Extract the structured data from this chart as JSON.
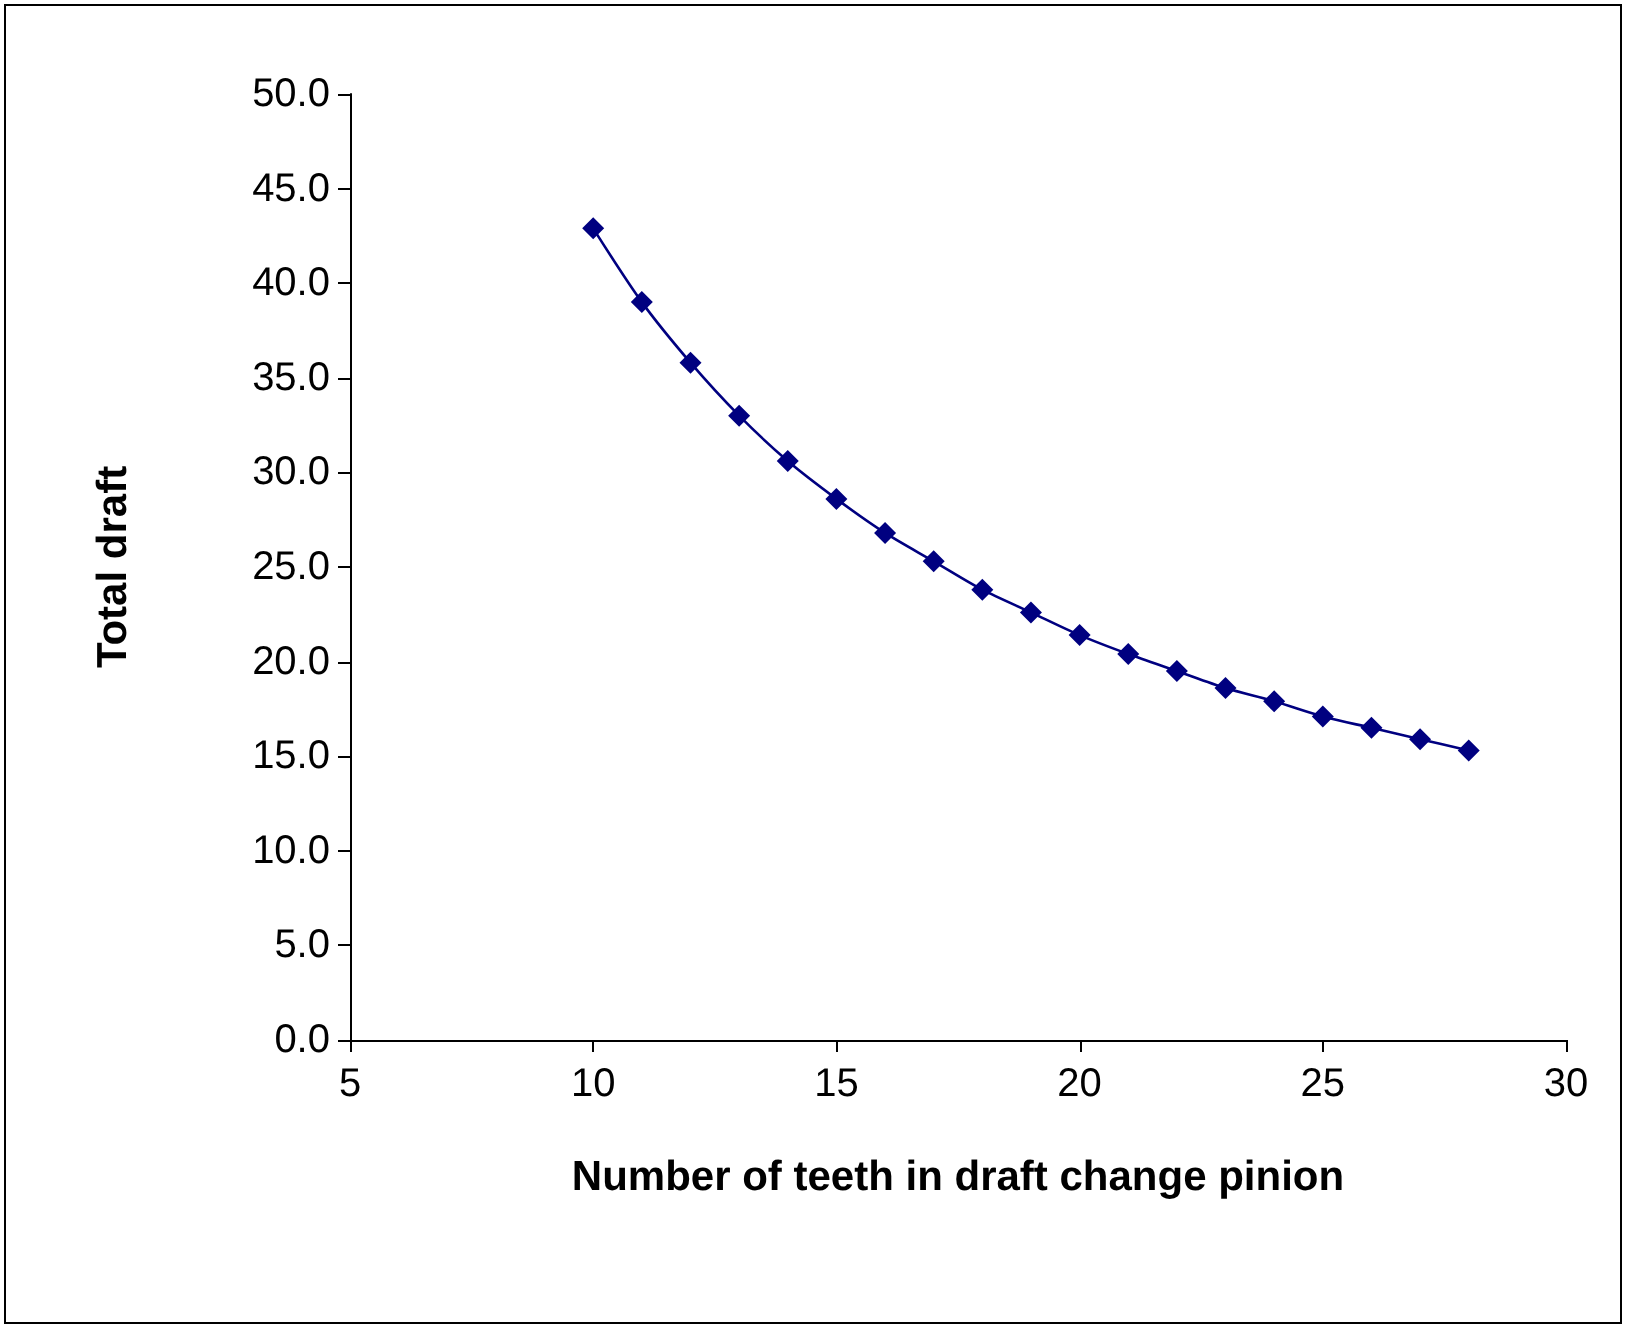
{
  "chart_data": {
    "type": "line",
    "xlabel": "Number of teeth in draft change pinion",
    "ylabel": "Total draft",
    "x": [
      10,
      11,
      12,
      13,
      14,
      15,
      16,
      17,
      18,
      19,
      20,
      21,
      22,
      23,
      24,
      25,
      26,
      27,
      28
    ],
    "series": [
      {
        "color": "#000080",
        "values": [
          42.9,
          39.0,
          35.8,
          33.0,
          30.6,
          28.6,
          26.8,
          25.3,
          23.8,
          22.6,
          21.4,
          20.4,
          19.5,
          18.6,
          17.9,
          17.1,
          16.5,
          15.9,
          15.3
        ]
      }
    ],
    "xlim": [
      5,
      30
    ],
    "xticks": [
      5,
      10,
      15,
      20,
      25,
      30
    ],
    "ylim": [
      0,
      50
    ],
    "yticks": [
      {
        "value": 0,
        "label": "0.0"
      },
      {
        "value": 5,
        "label": "5.0"
      },
      {
        "value": 10,
        "label": "10.0"
      },
      {
        "value": 15,
        "label": "15.0"
      },
      {
        "value": 20,
        "label": "20.0"
      },
      {
        "value": 25,
        "label": "25.0"
      },
      {
        "value": 30,
        "label": "30.0"
      },
      {
        "value": 35,
        "label": "35.0"
      },
      {
        "value": 40,
        "label": "40.0"
      },
      {
        "value": 45,
        "label": "45.0"
      },
      {
        "value": 50,
        "label": "50.0"
      }
    ],
    "grid": false,
    "marker": "diamond",
    "line_style": "solid"
  }
}
